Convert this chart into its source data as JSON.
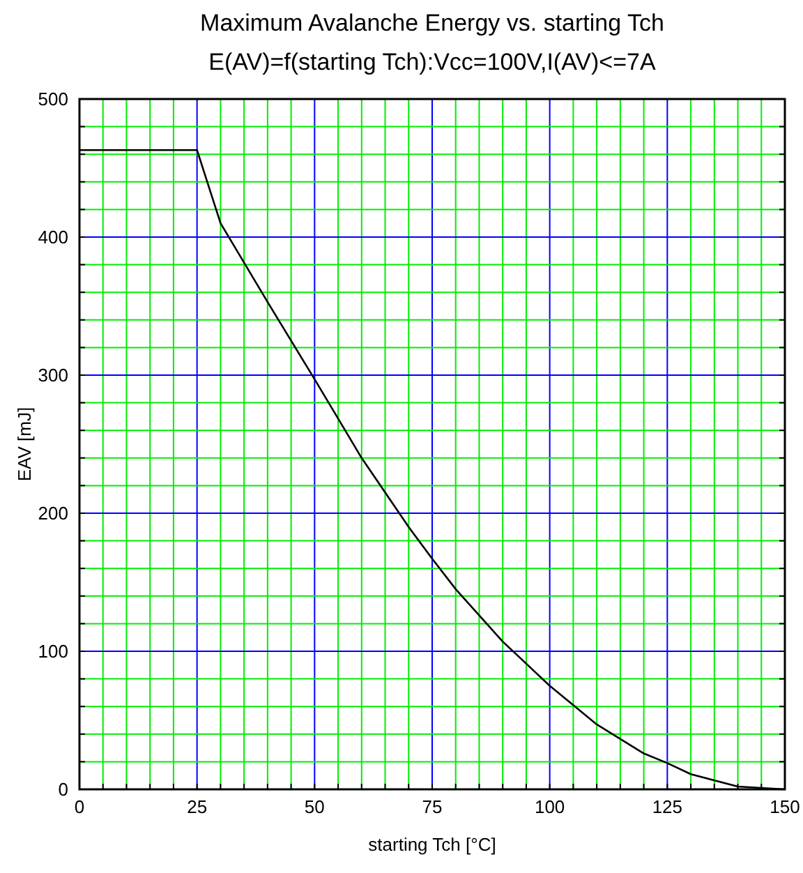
{
  "chart_data": {
    "type": "line",
    "title": "Maximum Avalanche Energy vs. starting Tch",
    "subtitle": "E(AV)=f(starting Tch):Vcc=100V,I(AV)<=7A",
    "xlabel": "starting Tch [°C]",
    "ylabel": "EAV [mJ]",
    "x": [
      0,
      25,
      30,
      40,
      50,
      60,
      70,
      75,
      80,
      90,
      100,
      110,
      120,
      125,
      130,
      140,
      150
    ],
    "series": [
      {
        "color": "#000000",
        "values": [
          463,
          463,
          410,
          353,
          297,
          240,
          190,
          167,
          145,
          107,
          75,
          47,
          26,
          19,
          11,
          2,
          0
        ]
      }
    ],
    "xlim": [
      0,
      150
    ],
    "ylim": [
      0,
      500
    ],
    "xticks": [
      0,
      {
        "value": 5,
        "label": null
      },
      {
        "value": 10,
        "label": null
      },
      {
        "value": 15,
        "label": null
      },
      {
        "value": 20,
        "label": null
      },
      25,
      {
        "value": 30,
        "label": null
      },
      {
        "value": 35,
        "label": null
      },
      {
        "value": 40,
        "label": null
      },
      {
        "value": 45,
        "label": null
      },
      50,
      {
        "value": 55,
        "label": null
      },
      {
        "value": 60,
        "label": null
      },
      {
        "value": 65,
        "label": null
      },
      {
        "value": 70,
        "label": null
      },
      75,
      {
        "value": 80,
        "label": null
      },
      {
        "value": 85,
        "label": null
      },
      {
        "value": 90,
        "label": null
      },
      {
        "value": 95,
        "label": null
      },
      100,
      {
        "value": 105,
        "label": null
      },
      {
        "value": 110,
        "label": null
      },
      {
        "value": 115,
        "label": null
      },
      {
        "value": 120,
        "label": null
      },
      125,
      {
        "value": 130,
        "label": null
      },
      {
        "value": 135,
        "label": null
      },
      {
        "value": 140,
        "label": null
      },
      {
        "value": 145,
        "label": null
      },
      150
    ],
    "yticks": [
      0,
      {
        "value": 20,
        "label": null
      },
      {
        "value": 40,
        "label": null
      },
      {
        "value": 60,
        "label": null
      },
      {
        "value": 80,
        "label": null
      },
      100,
      {
        "value": 120,
        "label": null
      },
      {
        "value": 140,
        "label": null
      },
      {
        "value": 160,
        "label": null
      },
      {
        "value": 180,
        "label": null
      },
      200,
      {
        "value": 220,
        "label": null
      },
      {
        "value": 240,
        "label": null
      },
      {
        "value": 260,
        "label": null
      },
      {
        "value": 280,
        "label": null
      },
      300,
      {
        "value": 320,
        "label": null
      },
      {
        "value": 340,
        "label": null
      },
      {
        "value": 360,
        "label": null
      },
      {
        "value": 380,
        "label": null
      },
      400,
      {
        "value": 420,
        "label": null
      },
      {
        "value": 440,
        "label": null
      },
      {
        "value": 460,
        "label": null
      },
      {
        "value": 480,
        "label": null
      },
      500
    ],
    "grid": true,
    "marker": "none",
    "line_style": "solid"
  }
}
